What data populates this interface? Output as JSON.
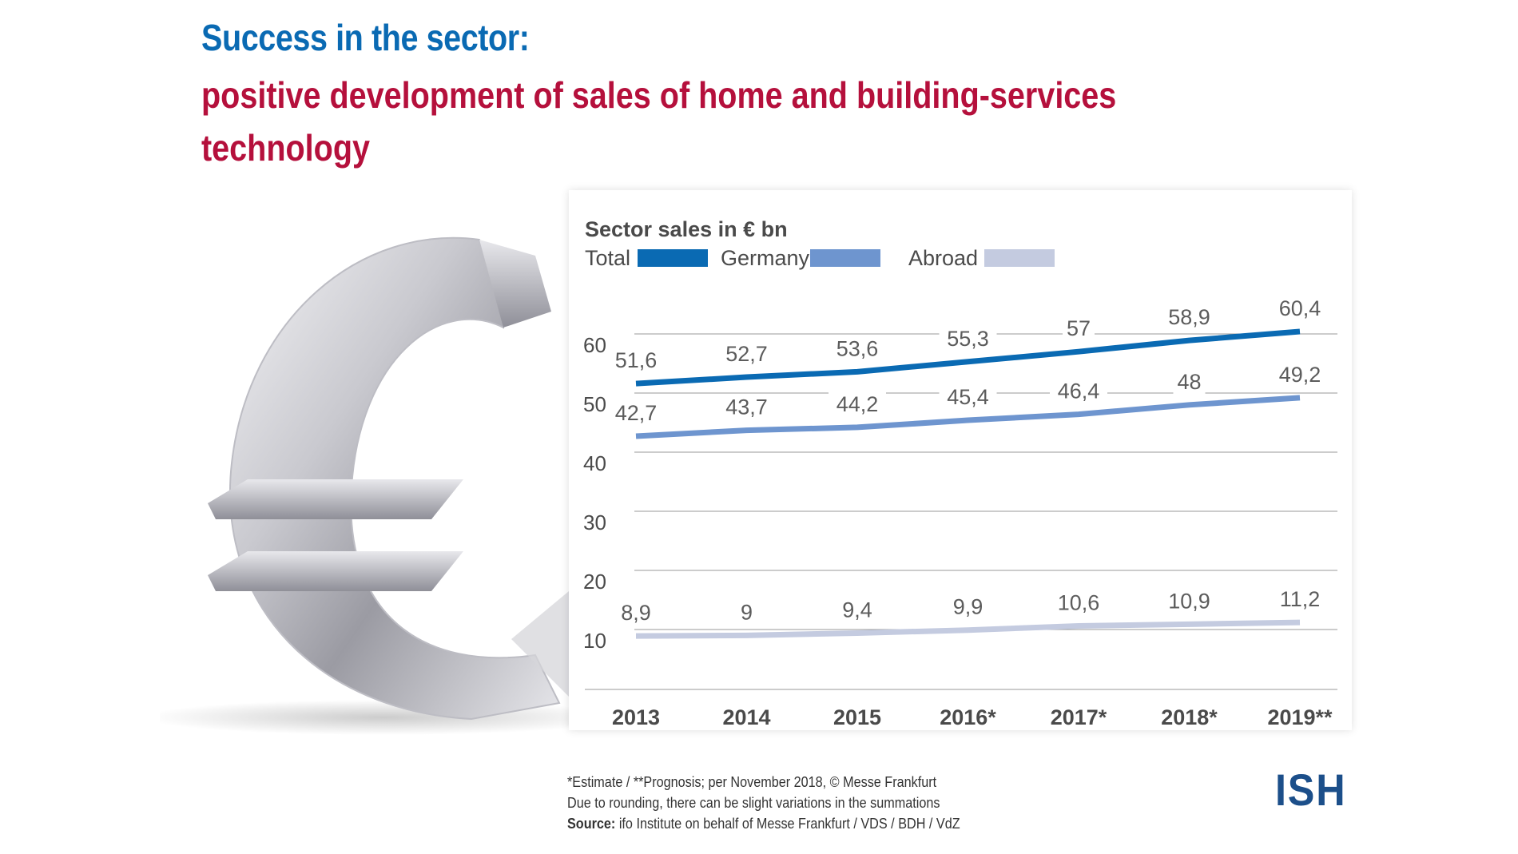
{
  "header": {
    "title_line1": "Success in the sector:",
    "title_line2": "positive development of sales of home and building-services",
    "title_line3": "technology"
  },
  "colors": {
    "title_blue": "#0a6ab3",
    "title_red": "#b5103c",
    "total": "#0a6ab3",
    "germany": "#6e95cf",
    "abroad": "#c4cbe0",
    "logo": "#1c4f8a"
  },
  "chart_data": {
    "type": "line",
    "title": "Sector sales in € bn",
    "categories": [
      "2013",
      "2014",
      "2015",
      "2016*",
      "2017*",
      "2018*",
      "2019**"
    ],
    "series": [
      {
        "name": "Total",
        "color": "#0a6ab3",
        "values": [
          51.6,
          52.7,
          53.6,
          55.3,
          57,
          58.9,
          60.4
        ],
        "labels": [
          "51,6",
          "52,7",
          "53,6",
          "55,3",
          "57",
          "58,9",
          "60,4"
        ]
      },
      {
        "name": "Germany",
        "color": "#6e95cf",
        "values": [
          42.7,
          43.7,
          44.2,
          45.4,
          46.4,
          48,
          49.2
        ],
        "labels": [
          "42,7",
          "43,7",
          "44,2",
          "45,4",
          "46,4",
          "48",
          "49,2"
        ]
      },
      {
        "name": "Abroad",
        "color": "#c4cbe0",
        "values": [
          8.9,
          9,
          9.4,
          9.9,
          10.6,
          10.9,
          11.2
        ],
        "labels": [
          "8,9",
          "9",
          "9,4",
          "9,9",
          "10,6",
          "10,9",
          "11,2"
        ]
      }
    ],
    "yticks": [
      10,
      20,
      30,
      40,
      50,
      60
    ],
    "ylim": [
      0,
      70
    ],
    "grid": true,
    "legend_position": "top-left"
  },
  "footer": {
    "note1": "*Estimate / **Prognosis; per November 2018, © Messe Frankfurt",
    "note2": "Due to rounding, there can be slight variations in the summations",
    "source_label": "Source:",
    "source_text": " ifo Institute on behalf of Messe Frankfurt / VDS / BDH / VdZ",
    "logo": "ISH"
  }
}
